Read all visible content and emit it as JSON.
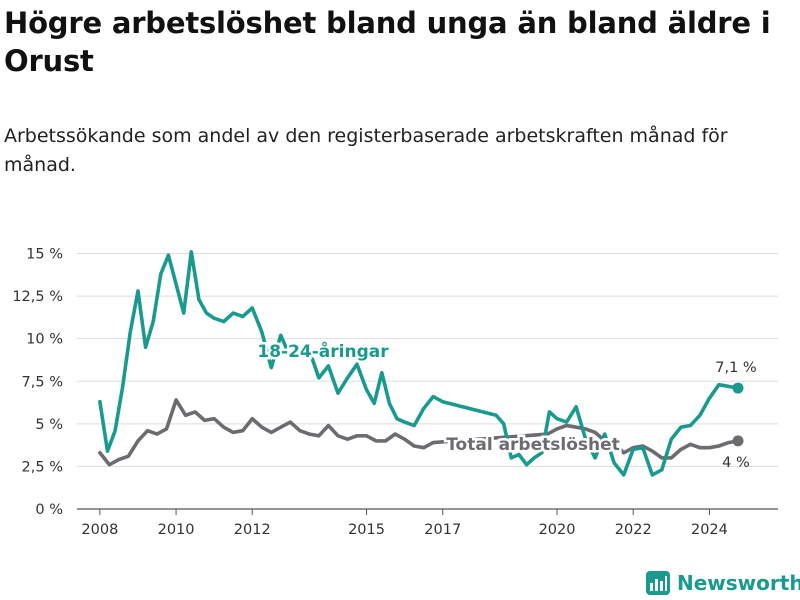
{
  "header": {
    "title": "Högre arbetslöshet bland unga än bland äldre i Orust",
    "subtitle": "Arbetssökande som andel av den registerbaserade arbetskraften månad för månad."
  },
  "brand": {
    "name": "Newsworthy",
    "icon": "newsworthy-logo-icon",
    "color": "#1a9a8f"
  },
  "chart_data": {
    "type": "line",
    "x_ticks": [
      {
        "value": 2008,
        "label": "2008"
      },
      {
        "value": 2010,
        "label": "2010"
      },
      {
        "value": 2012,
        "label": "2012"
      },
      {
        "value": 2015,
        "label": "2015"
      },
      {
        "value": 2017,
        "label": "2017"
      },
      {
        "value": 2020,
        "label": "2020"
      },
      {
        "value": 2022,
        "label": "2022"
      },
      {
        "value": 2024,
        "label": "2024"
      }
    ],
    "y_ticks": [
      {
        "value": 0,
        "label": "0 %"
      },
      {
        "value": 2.5,
        "label": "2,5 %"
      },
      {
        "value": 5,
        "label": "5 %"
      },
      {
        "value": 7.5,
        "label": "7,5 %"
      },
      {
        "value": 10,
        "label": "10 %"
      },
      {
        "value": 12.5,
        "label": "12,5 %"
      },
      {
        "value": 15,
        "label": "15 %"
      }
    ],
    "xlim": [
      2007.4,
      2025.8
    ],
    "ylim": [
      0,
      15.5
    ],
    "grid": true,
    "series": [
      {
        "name": "Total arbetslöshet",
        "color": "#6e6b70",
        "end_label": "4 %",
        "points": [
          [
            2008.0,
            3.3
          ],
          [
            2008.25,
            2.6
          ],
          [
            2008.5,
            2.9
          ],
          [
            2008.75,
            3.1
          ],
          [
            2009.0,
            4.0
          ],
          [
            2009.25,
            4.6
          ],
          [
            2009.5,
            4.4
          ],
          [
            2009.75,
            4.7
          ],
          [
            2010.0,
            6.4
          ],
          [
            2010.25,
            5.5
          ],
          [
            2010.5,
            5.7
          ],
          [
            2010.75,
            5.2
          ],
          [
            2011.0,
            5.3
          ],
          [
            2011.25,
            4.8
          ],
          [
            2011.5,
            4.5
          ],
          [
            2011.75,
            4.6
          ],
          [
            2012.0,
            5.3
          ],
          [
            2012.25,
            4.8
          ],
          [
            2012.5,
            4.5
          ],
          [
            2012.75,
            4.8
          ],
          [
            2013.0,
            5.1
          ],
          [
            2013.25,
            4.6
          ],
          [
            2013.5,
            4.4
          ],
          [
            2013.75,
            4.3
          ],
          [
            2014.0,
            4.9
          ],
          [
            2014.25,
            4.3
          ],
          [
            2014.5,
            4.1
          ],
          [
            2014.75,
            4.3
          ],
          [
            2015.0,
            4.3
          ],
          [
            2015.25,
            4.0
          ],
          [
            2015.5,
            4.0
          ],
          [
            2015.75,
            4.4
          ],
          [
            2016.0,
            4.1
          ],
          [
            2016.25,
            3.7
          ],
          [
            2016.5,
            3.6
          ],
          [
            2016.75,
            3.9
          ],
          [
            2019.75,
            4.4
          ],
          [
            2020.0,
            4.7
          ],
          [
            2020.25,
            4.9
          ],
          [
            2020.5,
            4.8
          ],
          [
            2020.75,
            4.7
          ],
          [
            2021.0,
            4.5
          ],
          [
            2021.25,
            4.0
          ],
          [
            2021.5,
            3.9
          ],
          [
            2021.75,
            3.3
          ],
          [
            2022.0,
            3.6
          ],
          [
            2022.25,
            3.7
          ],
          [
            2022.5,
            3.4
          ],
          [
            2022.75,
            3.0
          ],
          [
            2023.0,
            3.0
          ],
          [
            2023.25,
            3.5
          ],
          [
            2023.5,
            3.8
          ],
          [
            2023.75,
            3.6
          ],
          [
            2024.0,
            3.6
          ],
          [
            2024.25,
            3.7
          ],
          [
            2024.5,
            3.9
          ],
          [
            2024.75,
            4.0
          ]
        ]
      },
      {
        "name": "18-24-åringar",
        "color": "#1a9a8f",
        "end_label": "7,1 %",
        "points": [
          [
            2008.0,
            6.3
          ],
          [
            2008.2,
            3.4
          ],
          [
            2008.4,
            4.6
          ],
          [
            2008.6,
            7.2
          ],
          [
            2008.8,
            10.4
          ],
          [
            2009.0,
            12.8
          ],
          [
            2009.2,
            9.5
          ],
          [
            2009.4,
            11.0
          ],
          [
            2009.6,
            13.8
          ],
          [
            2009.8,
            14.9
          ],
          [
            2010.0,
            13.2
          ],
          [
            2010.2,
            11.5
          ],
          [
            2010.4,
            15.1
          ],
          [
            2010.6,
            12.3
          ],
          [
            2010.8,
            11.5
          ],
          [
            2011.0,
            11.2
          ],
          [
            2011.25,
            11.0
          ],
          [
            2011.5,
            11.5
          ],
          [
            2011.75,
            11.3
          ],
          [
            2012.0,
            11.8
          ],
          [
            2012.25,
            10.4
          ],
          [
            2012.5,
            8.3
          ],
          [
            2012.75,
            10.2
          ],
          [
            2013.0,
            8.9
          ],
          [
            2013.5,
            9.3
          ],
          [
            2013.75,
            7.7
          ],
          [
            2014.0,
            8.4
          ],
          [
            2014.25,
            6.8
          ],
          [
            2014.5,
            7.7
          ],
          [
            2014.75,
            8.5
          ],
          [
            2015.0,
            7.0
          ],
          [
            2015.2,
            6.2
          ],
          [
            2015.4,
            8.0
          ],
          [
            2015.6,
            6.2
          ],
          [
            2015.8,
            5.3
          ],
          [
            2016.0,
            5.1
          ],
          [
            2016.25,
            4.9
          ],
          [
            2016.5,
            5.9
          ],
          [
            2016.75,
            6.6
          ],
          [
            2017.0,
            6.3
          ],
          [
            2018.4,
            5.5
          ],
          [
            2018.6,
            5.0
          ],
          [
            2018.8,
            3.0
          ],
          [
            2019.0,
            3.2
          ],
          [
            2019.2,
            2.6
          ],
          [
            2019.4,
            3.0
          ],
          [
            2019.6,
            3.3
          ],
          [
            2019.8,
            5.7
          ],
          [
            2020.0,
            5.3
          ],
          [
            2020.25,
            5.1
          ],
          [
            2020.5,
            6.0
          ],
          [
            2020.75,
            4.1
          ],
          [
            2021.0,
            3.0
          ],
          [
            2021.25,
            4.4
          ],
          [
            2021.5,
            2.7
          ],
          [
            2021.75,
            2.0
          ],
          [
            2022.0,
            3.5
          ],
          [
            2022.25,
            3.6
          ],
          [
            2022.5,
            2.0
          ],
          [
            2022.75,
            2.3
          ],
          [
            2023.0,
            4.1
          ],
          [
            2023.25,
            4.8
          ],
          [
            2023.5,
            4.9
          ],
          [
            2023.75,
            5.5
          ],
          [
            2024.0,
            6.5
          ],
          [
            2024.25,
            7.3
          ],
          [
            2024.5,
            7.2
          ],
          [
            2024.75,
            7.1
          ]
        ]
      }
    ],
    "annotations": [
      {
        "series": "18-24-åringar",
        "label": "18-24-åringar"
      },
      {
        "series": "Total arbetslöshet",
        "label": "Total arbetslöshet"
      }
    ]
  }
}
